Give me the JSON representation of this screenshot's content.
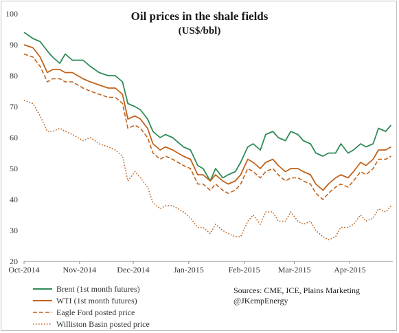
{
  "chart_data": {
    "type": "line",
    "title": "Oil prices in the shale fields",
    "subtitle": "(US$/bbl)",
    "xlabel": "",
    "ylabel": "",
    "ylim": [
      20,
      100
    ],
    "yticks": [
      20,
      30,
      40,
      50,
      60,
      70,
      80,
      90,
      100
    ],
    "xlim": [
      "2014-10-01",
      "2015-04-25"
    ],
    "xticks": [
      {
        "date": "2014-10-01",
        "label": "Oct-2014"
      },
      {
        "date": "2014-11-01",
        "label": "Nov-2014"
      },
      {
        "date": "2014-12-01",
        "label": "Dec-2014"
      },
      {
        "date": "2015-01-01",
        "label": "Jan-2015"
      },
      {
        "date": "2015-02-01",
        "label": "Feb-2015"
      },
      {
        "date": "2015-03-01",
        "label": "Mar-2015"
      },
      {
        "date": "2015-04-01",
        "label": "Apr-2015"
      }
    ],
    "grid": false,
    "legend_position": "bottom-left",
    "series": [
      {
        "name": "Brent (1st month futures)",
        "color": "#2e8b57",
        "style": "solid",
        "points": [
          [
            "2014-10-01",
            94
          ],
          [
            "2014-10-06",
            92
          ],
          [
            "2014-10-10",
            91
          ],
          [
            "2014-10-14",
            88
          ],
          [
            "2014-10-17",
            86
          ],
          [
            "2014-10-21",
            84
          ],
          [
            "2014-10-24",
            87
          ],
          [
            "2014-10-28",
            85
          ],
          [
            "2014-11-03",
            85
          ],
          [
            "2014-11-07",
            83
          ],
          [
            "2014-11-12",
            81
          ],
          [
            "2014-11-17",
            80
          ],
          [
            "2014-11-21",
            80
          ],
          [
            "2014-11-25",
            78
          ],
          [
            "2014-11-28",
            71
          ],
          [
            "2014-12-02",
            70
          ],
          [
            "2014-12-05",
            69
          ],
          [
            "2014-12-09",
            66
          ],
          [
            "2014-12-12",
            62
          ],
          [
            "2014-12-16",
            60
          ],
          [
            "2014-12-19",
            61
          ],
          [
            "2014-12-23",
            60
          ],
          [
            "2014-12-29",
            57
          ],
          [
            "2015-01-02",
            56
          ],
          [
            "2015-01-06",
            51
          ],
          [
            "2015-01-09",
            50
          ],
          [
            "2015-01-13",
            46
          ],
          [
            "2015-01-16",
            50
          ],
          [
            "2015-01-20",
            47
          ],
          [
            "2015-01-23",
            48
          ],
          [
            "2015-01-27",
            49
          ],
          [
            "2015-01-30",
            52
          ],
          [
            "2015-02-03",
            57
          ],
          [
            "2015-02-06",
            58
          ],
          [
            "2015-02-10",
            56
          ],
          [
            "2015-02-13",
            61
          ],
          [
            "2015-02-17",
            62
          ],
          [
            "2015-02-20",
            60
          ],
          [
            "2015-02-24",
            59
          ],
          [
            "2015-02-27",
            62
          ],
          [
            "2015-03-03",
            61
          ],
          [
            "2015-03-06",
            59
          ],
          [
            "2015-03-10",
            58
          ],
          [
            "2015-03-13",
            55
          ],
          [
            "2015-03-17",
            54
          ],
          [
            "2015-03-20",
            55
          ],
          [
            "2015-03-24",
            55
          ],
          [
            "2015-03-27",
            58
          ],
          [
            "2015-03-31",
            55
          ],
          [
            "2015-04-03",
            56
          ],
          [
            "2015-04-07",
            58
          ],
          [
            "2015-04-10",
            57
          ],
          [
            "2015-04-14",
            58
          ],
          [
            "2015-04-17",
            63
          ],
          [
            "2015-04-21",
            62
          ],
          [
            "2015-04-24",
            64
          ]
        ]
      },
      {
        "name": "WTI (1st month futures)",
        "color": "#c0621a",
        "style": "solid",
        "points": [
          [
            "2014-10-01",
            90
          ],
          [
            "2014-10-06",
            89
          ],
          [
            "2014-10-10",
            86
          ],
          [
            "2014-10-14",
            81
          ],
          [
            "2014-10-17",
            82
          ],
          [
            "2014-10-21",
            82
          ],
          [
            "2014-10-24",
            81
          ],
          [
            "2014-10-28",
            81
          ],
          [
            "2014-11-03",
            79
          ],
          [
            "2014-11-07",
            78
          ],
          [
            "2014-11-12",
            77
          ],
          [
            "2014-11-17",
            76
          ],
          [
            "2014-11-21",
            76
          ],
          [
            "2014-11-25",
            74
          ],
          [
            "2014-11-28",
            66
          ],
          [
            "2014-12-02",
            67
          ],
          [
            "2014-12-05",
            66
          ],
          [
            "2014-12-09",
            63
          ],
          [
            "2014-12-12",
            58
          ],
          [
            "2014-12-16",
            56
          ],
          [
            "2014-12-19",
            57
          ],
          [
            "2014-12-23",
            56
          ],
          [
            "2014-12-29",
            54
          ],
          [
            "2015-01-02",
            53
          ],
          [
            "2015-01-06",
            48
          ],
          [
            "2015-01-09",
            48
          ],
          [
            "2015-01-13",
            46
          ],
          [
            "2015-01-16",
            48
          ],
          [
            "2015-01-20",
            46
          ],
          [
            "2015-01-23",
            45
          ],
          [
            "2015-01-27",
            46
          ],
          [
            "2015-01-30",
            48
          ],
          [
            "2015-02-03",
            53
          ],
          [
            "2015-02-06",
            52
          ],
          [
            "2015-02-10",
            50
          ],
          [
            "2015-02-13",
            52
          ],
          [
            "2015-02-17",
            53
          ],
          [
            "2015-02-20",
            51
          ],
          [
            "2015-02-24",
            49
          ],
          [
            "2015-02-27",
            50
          ],
          [
            "2015-03-03",
            50
          ],
          [
            "2015-03-06",
            49
          ],
          [
            "2015-03-10",
            48
          ],
          [
            "2015-03-13",
            45
          ],
          [
            "2015-03-17",
            43
          ],
          [
            "2015-03-20",
            45
          ],
          [
            "2015-03-24",
            47
          ],
          [
            "2015-03-27",
            48
          ],
          [
            "2015-03-31",
            47
          ],
          [
            "2015-04-03",
            49
          ],
          [
            "2015-04-07",
            52
          ],
          [
            "2015-04-10",
            51
          ],
          [
            "2015-04-14",
            53
          ],
          [
            "2015-04-17",
            56
          ],
          [
            "2015-04-21",
            56
          ],
          [
            "2015-04-24",
            57
          ]
        ]
      },
      {
        "name": "Eagle Ford posted price",
        "color": "#c0621a",
        "style": "dashed",
        "points": [
          [
            "2014-10-01",
            87
          ],
          [
            "2014-10-06",
            86
          ],
          [
            "2014-10-10",
            83
          ],
          [
            "2014-10-14",
            78
          ],
          [
            "2014-10-17",
            79
          ],
          [
            "2014-10-21",
            79
          ],
          [
            "2014-10-24",
            78
          ],
          [
            "2014-10-28",
            78
          ],
          [
            "2014-11-03",
            76
          ],
          [
            "2014-11-07",
            75
          ],
          [
            "2014-11-12",
            74
          ],
          [
            "2014-11-17",
            73
          ],
          [
            "2014-11-21",
            73
          ],
          [
            "2014-11-25",
            71
          ],
          [
            "2014-11-28",
            63
          ],
          [
            "2014-12-02",
            64
          ],
          [
            "2014-12-05",
            63
          ],
          [
            "2014-12-09",
            60
          ],
          [
            "2014-12-12",
            55
          ],
          [
            "2014-12-16",
            53
          ],
          [
            "2014-12-19",
            54
          ],
          [
            "2014-12-23",
            53
          ],
          [
            "2014-12-29",
            51
          ],
          [
            "2015-01-02",
            50
          ],
          [
            "2015-01-06",
            45
          ],
          [
            "2015-01-09",
            45
          ],
          [
            "2015-01-13",
            43
          ],
          [
            "2015-01-16",
            45
          ],
          [
            "2015-01-20",
            43
          ],
          [
            "2015-01-23",
            42
          ],
          [
            "2015-01-27",
            43
          ],
          [
            "2015-01-30",
            45
          ],
          [
            "2015-02-03",
            50
          ],
          [
            "2015-02-06",
            49
          ],
          [
            "2015-02-10",
            47
          ],
          [
            "2015-02-13",
            49
          ],
          [
            "2015-02-17",
            50
          ],
          [
            "2015-02-20",
            48
          ],
          [
            "2015-02-24",
            46
          ],
          [
            "2015-02-27",
            47
          ],
          [
            "2015-03-03",
            47
          ],
          [
            "2015-03-06",
            46
          ],
          [
            "2015-03-10",
            45
          ],
          [
            "2015-03-13",
            42
          ],
          [
            "2015-03-17",
            40
          ],
          [
            "2015-03-20",
            42
          ],
          [
            "2015-03-24",
            44
          ],
          [
            "2015-03-27",
            45
          ],
          [
            "2015-03-31",
            44
          ],
          [
            "2015-04-03",
            46
          ],
          [
            "2015-04-07",
            49
          ],
          [
            "2015-04-10",
            48
          ],
          [
            "2015-04-14",
            50
          ],
          [
            "2015-04-17",
            53
          ],
          [
            "2015-04-21",
            53
          ],
          [
            "2015-04-24",
            54
          ]
        ]
      },
      {
        "name": "Williston Basin posted price",
        "color": "#c0621a",
        "style": "dotted",
        "points": [
          [
            "2014-10-01",
            72
          ],
          [
            "2014-10-06",
            71
          ],
          [
            "2014-10-10",
            67
          ],
          [
            "2014-10-14",
            62
          ],
          [
            "2014-10-17",
            62
          ],
          [
            "2014-10-21",
            63
          ],
          [
            "2014-10-24",
            62
          ],
          [
            "2014-10-28",
            61
          ],
          [
            "2014-11-03",
            59
          ],
          [
            "2014-11-07",
            60
          ],
          [
            "2014-11-12",
            58
          ],
          [
            "2014-11-17",
            57
          ],
          [
            "2014-11-21",
            56
          ],
          [
            "2014-11-25",
            54
          ],
          [
            "2014-11-28",
            46
          ],
          [
            "2014-12-02",
            49
          ],
          [
            "2014-12-05",
            47
          ],
          [
            "2014-12-09",
            44
          ],
          [
            "2014-12-12",
            39
          ],
          [
            "2014-12-16",
            37
          ],
          [
            "2014-12-19",
            38
          ],
          [
            "2014-12-23",
            38
          ],
          [
            "2014-12-29",
            36
          ],
          [
            "2015-01-02",
            34
          ],
          [
            "2015-01-06",
            31
          ],
          [
            "2015-01-09",
            31
          ],
          [
            "2015-01-13",
            29
          ],
          [
            "2015-01-16",
            32
          ],
          [
            "2015-01-20",
            30
          ],
          [
            "2015-01-23",
            29
          ],
          [
            "2015-01-27",
            28
          ],
          [
            "2015-01-30",
            28
          ],
          [
            "2015-02-03",
            33
          ],
          [
            "2015-02-06",
            35
          ],
          [
            "2015-02-10",
            32
          ],
          [
            "2015-02-13",
            36
          ],
          [
            "2015-02-17",
            36
          ],
          [
            "2015-02-20",
            33
          ],
          [
            "2015-02-24",
            33
          ],
          [
            "2015-02-27",
            36
          ],
          [
            "2015-03-03",
            33
          ],
          [
            "2015-03-06",
            32
          ],
          [
            "2015-03-10",
            33
          ],
          [
            "2015-03-13",
            30
          ],
          [
            "2015-03-17",
            28
          ],
          [
            "2015-03-20",
            27
          ],
          [
            "2015-03-24",
            28
          ],
          [
            "2015-03-27",
            31
          ],
          [
            "2015-03-31",
            31
          ],
          [
            "2015-04-03",
            32
          ],
          [
            "2015-04-07",
            35
          ],
          [
            "2015-04-10",
            33
          ],
          [
            "2015-04-14",
            34
          ],
          [
            "2015-04-17",
            37
          ],
          [
            "2015-04-21",
            36
          ],
          [
            "2015-04-24",
            38
          ]
        ]
      }
    ]
  },
  "source_lines": [
    "Sources: CME, ICE, Plains Marketing",
    "@JKempEnergy"
  ]
}
